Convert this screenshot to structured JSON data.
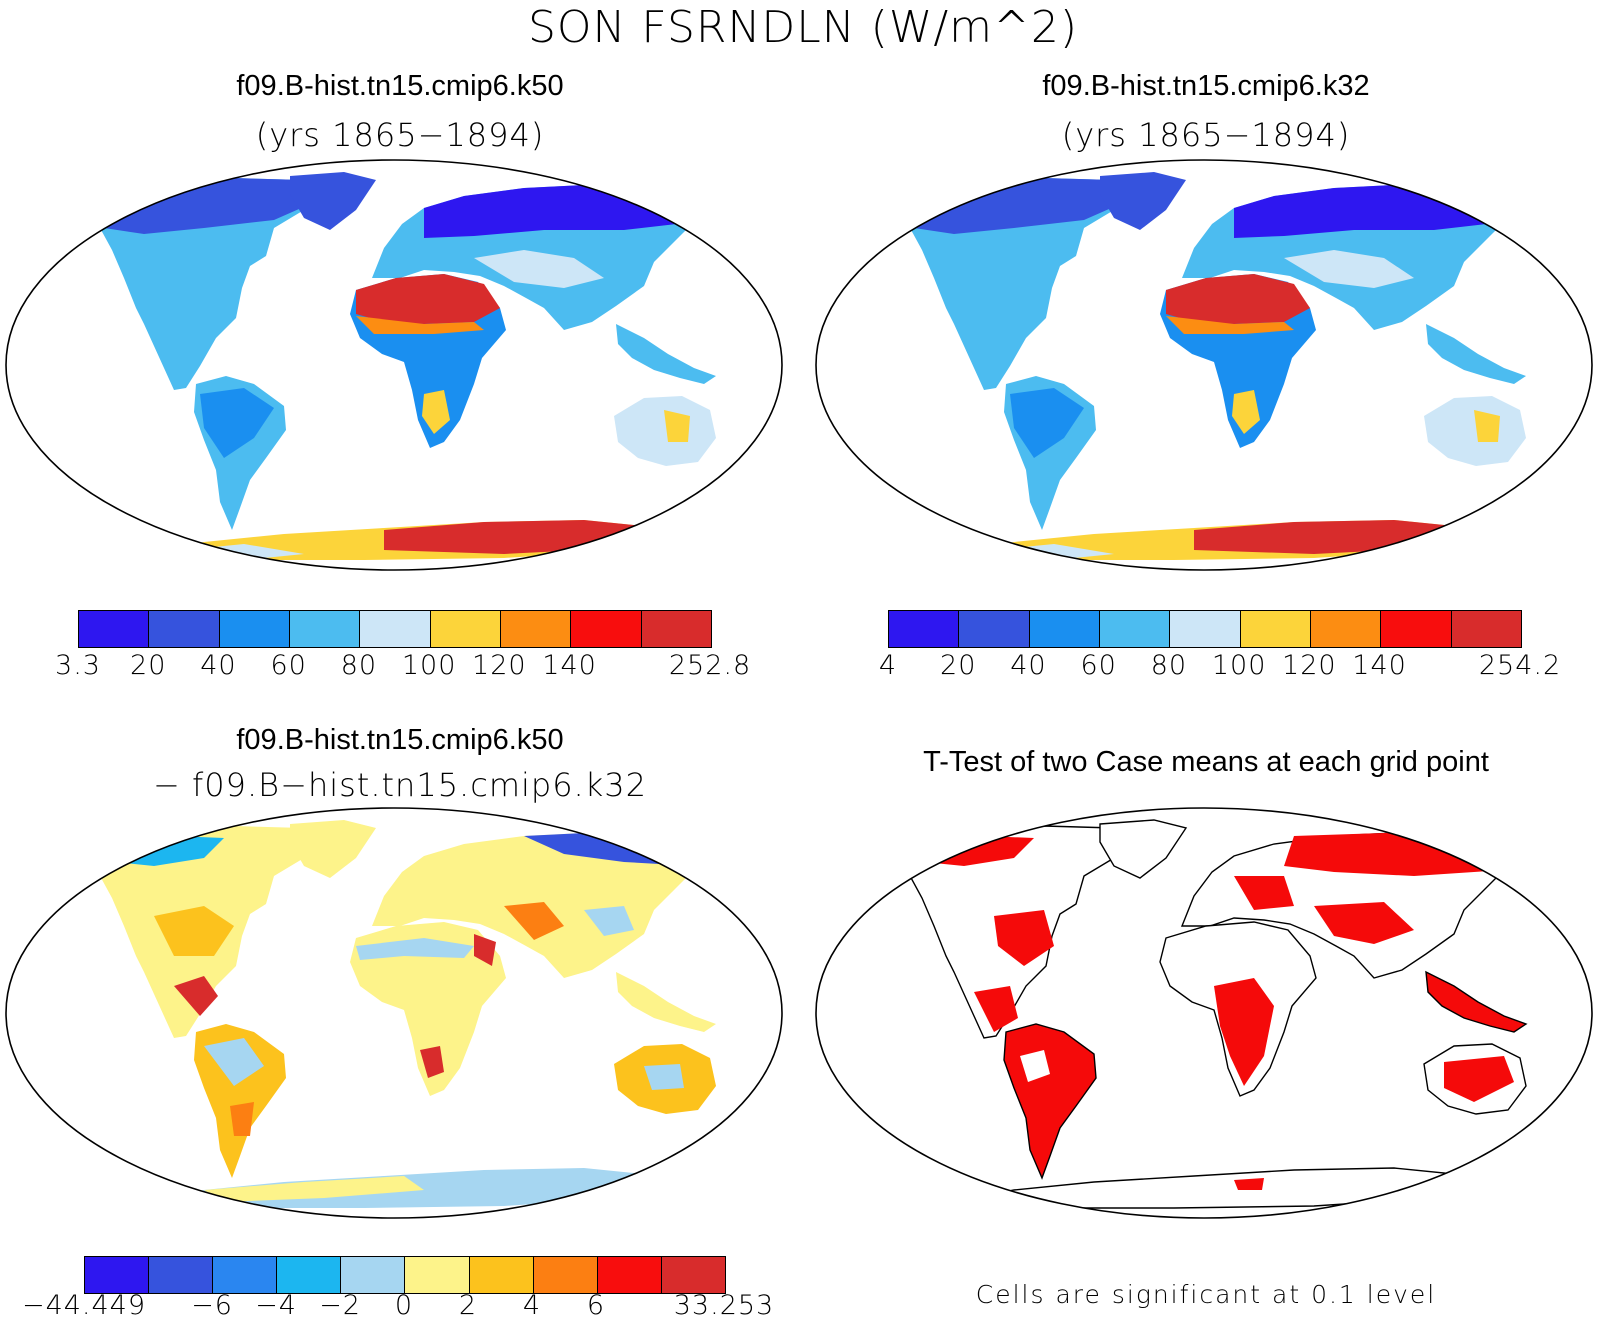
{
  "figure": {
    "title": "SON FSRNDLN (W/m^2)"
  },
  "panels": {
    "top_left": {
      "case": "f09.B-hist.tn15.cmip6.k50",
      "years": "(yrs 1865−1894)",
      "colorbar": {
        "labels": [
          "3.3",
          "20",
          "40",
          "60",
          "80",
          "100",
          "120",
          "140",
          "252.8"
        ],
        "colors": [
          "#2e17f0",
          "#3653dd",
          "#1a8ff0",
          "#4cbcf0",
          "#cde6f7",
          "#fcd43a",
          "#fc8d12",
          "#f80d0d",
          "#d82c2c"
        ]
      }
    },
    "top_right": {
      "case": "f09.B-hist.tn15.cmip6.k32",
      "years": "(yrs 1865−1894)",
      "colorbar": {
        "labels": [
          "4",
          "20",
          "40",
          "60",
          "80",
          "100",
          "120",
          "140",
          "254.2"
        ],
        "colors": [
          "#2e17f0",
          "#3653dd",
          "#1a8ff0",
          "#4cbcf0",
          "#cde6f7",
          "#fcd43a",
          "#fc8d12",
          "#f80d0d",
          "#d82c2c"
        ]
      }
    },
    "bottom_left": {
      "case_a": "f09.B-hist.tn15.cmip6.k50",
      "case_b": "− f09.B−hist.tn15.cmip6.k32",
      "colorbar": {
        "labels": [
          "−44.449",
          "−6",
          "−4",
          "−2",
          "0",
          "2",
          "4",
          "6",
          "33.253"
        ],
        "colors": [
          "#2e17f0",
          "#3653dd",
          "#2a86f0",
          "#1cb6f0",
          "#a6d6f1",
          "#fdf38a",
          "#fcc21d",
          "#fc7f12",
          "#f80d0d",
          "#d82c2c"
        ]
      }
    },
    "bottom_right": {
      "title": "T-Test of two Case means at each grid point",
      "note": "Cells are significant at 0.1 level",
      "significant_color": "#f50a0a"
    }
  }
}
